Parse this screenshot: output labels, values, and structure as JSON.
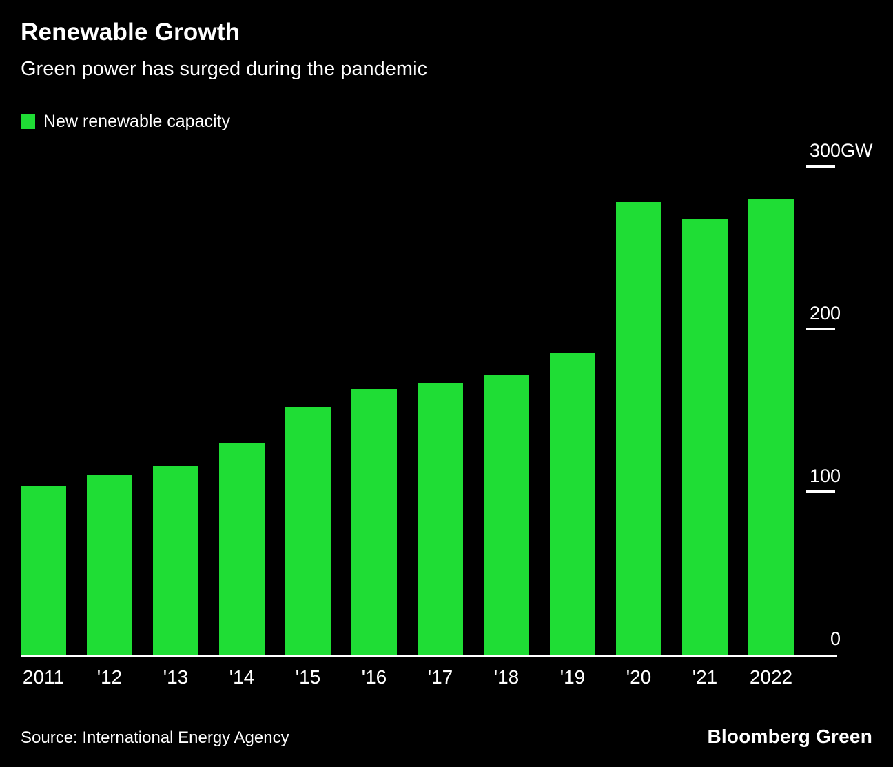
{
  "header": {
    "title": "Renewable Growth",
    "subtitle": "Green power has surged during the pandemic"
  },
  "legend": {
    "label": "New renewable capacity",
    "swatch_color": "#1fdd35"
  },
  "chart_data": {
    "type": "bar",
    "title": "Renewable Growth",
    "subtitle": "Green power has surged during the pandemic",
    "series_name": "New renewable capacity",
    "categories": [
      "2011",
      "'12",
      "'13",
      "'14",
      "'15",
      "'16",
      "'17",
      "'18",
      "'19",
      "'20",
      "'21",
      "2022"
    ],
    "values": [
      104,
      110,
      116,
      130,
      152,
      163,
      167,
      172,
      185,
      278,
      268,
      280
    ],
    "unit": "GW",
    "xlabel": "",
    "ylabel": "New renewable capacity (GW)",
    "ylim": [
      0,
      300
    ],
    "yticks": [
      0,
      100,
      200,
      300
    ],
    "ytick_labels": [
      "0",
      "100",
      "200",
      "300GW"
    ],
    "bar_color": "#1fdd35",
    "background_color": "#000000",
    "text_color": "#ffffff",
    "grid": "right-side tick dashes only",
    "legend_position": "top-left"
  },
  "footer": {
    "source": "Source: International Energy Agency",
    "brand": "Bloomberg Green"
  }
}
